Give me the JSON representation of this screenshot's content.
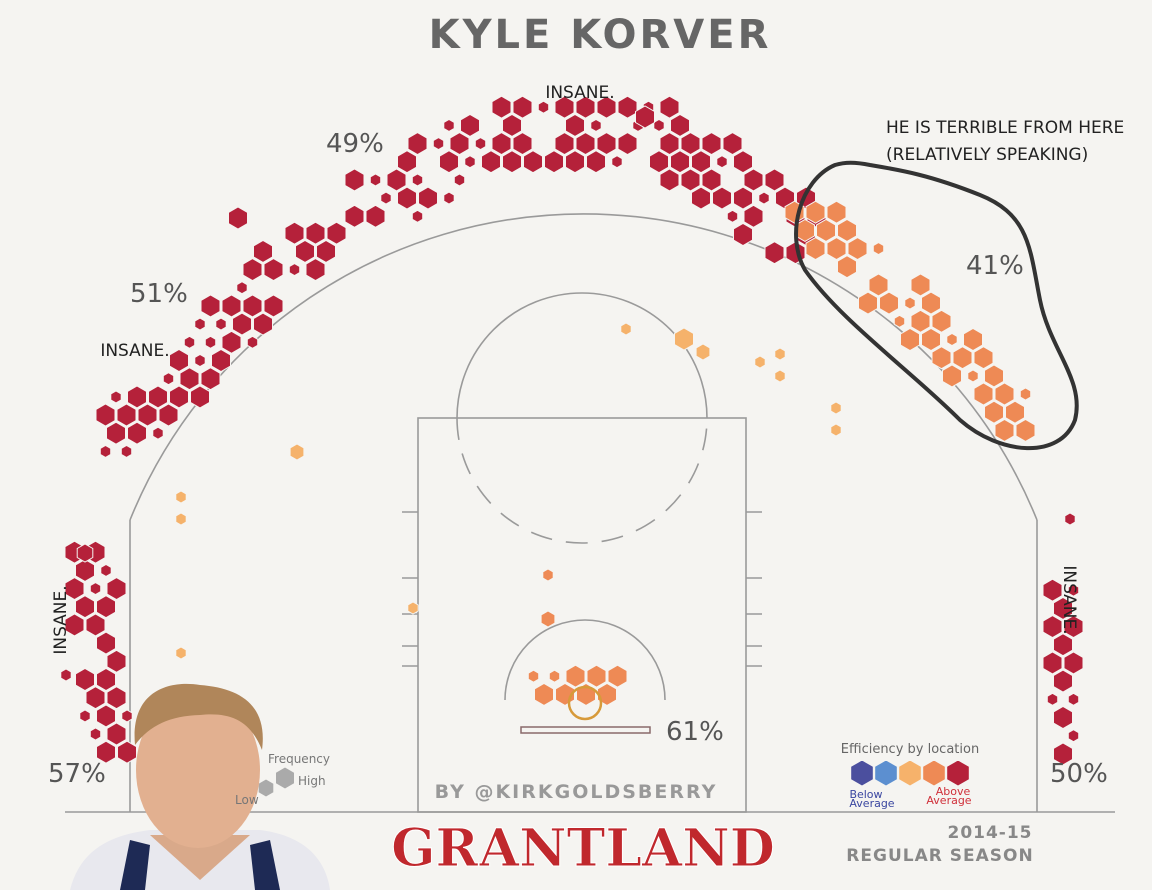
{
  "title": "KYLE KORVER",
  "annotations": {
    "top": "INSANE.",
    "left_wing": "INSANE.",
    "left_corner": "INSANE.",
    "right_corner": "INSANE.",
    "terrible": [
      "HE IS TERRIBLE FROM HERE",
      "(RELATIVELY SPEAKING)"
    ]
  },
  "zones": {
    "left_corner": "57%",
    "left_wing": "51%",
    "top": "49%",
    "right_wing": "41%",
    "rim": "61%",
    "right_corner": "50%"
  },
  "legend": {
    "frequency": {
      "title": "Frequency",
      "low": "Low",
      "high": "High"
    },
    "efficiency": {
      "title": "Efficiency by location",
      "below": [
        "Below",
        "Average"
      ],
      "above": [
        "Above",
        "Average"
      ]
    }
  },
  "credit": "BY @KIRKGOLDSBERRY",
  "brand": "GRANTLAND",
  "season": [
    "2014-15",
    "REGULAR SEASON"
  ]
}
